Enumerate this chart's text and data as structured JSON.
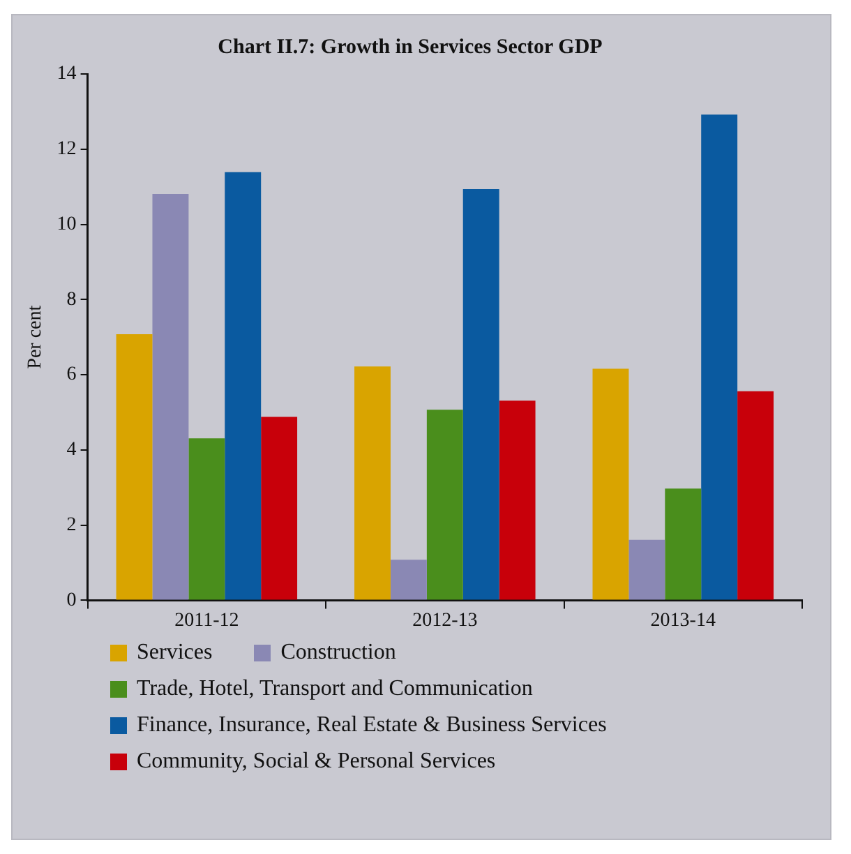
{
  "chart_data": {
    "type": "bar",
    "title": "Chart II.7: Growth in Services Sector GDP",
    "ylabel": "Per cent",
    "categories": [
      "2011-12",
      "2012-13",
      "2013-14"
    ],
    "series": [
      {
        "name": "Services",
        "color": "#d9a400",
        "values": [
          7.08,
          6.22,
          6.16
        ]
      },
      {
        "name": "Construction",
        "color": "#8a88b4",
        "values": [
          10.81,
          1.08,
          1.61
        ]
      },
      {
        "name": "Trade, Hotel, Transport and Communication",
        "color": "#4a8e1c",
        "values": [
          4.31,
          5.07,
          2.97
        ]
      },
      {
        "name": "Finance, Insurance, Real Estate & Business Services",
        "color": "#0a5aa0",
        "values": [
          11.39,
          10.94,
          12.92
        ]
      },
      {
        "name": "Community, Social & Personal Services",
        "color": "#c8000a",
        "values": [
          4.88,
          5.31,
          5.56
        ]
      }
    ],
    "ylim": [
      0,
      14
    ],
    "yticks": [
      0,
      2,
      4,
      6,
      8,
      10,
      12,
      14
    ],
    "grid": false,
    "legend": "bottom"
  }
}
